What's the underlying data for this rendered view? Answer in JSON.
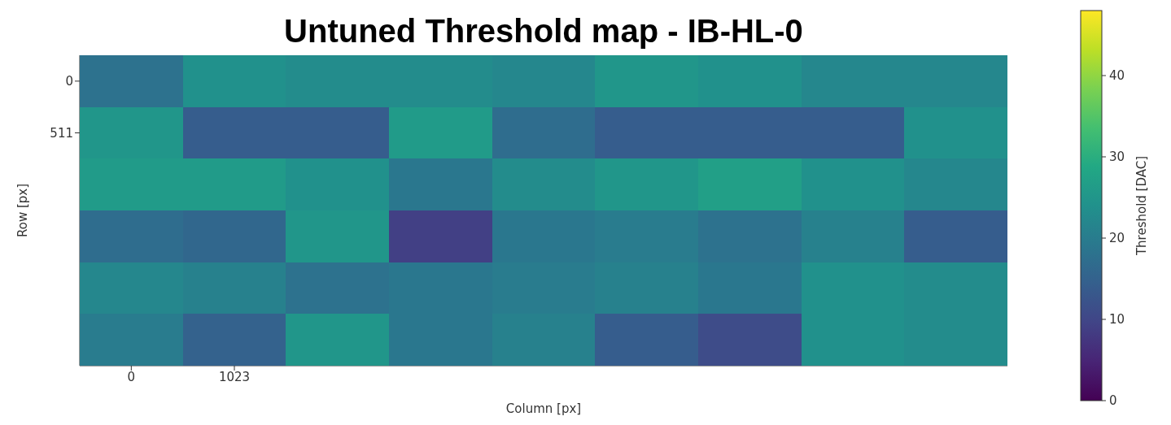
{
  "chart_data": {
    "type": "heatmap",
    "title": "Untuned Threshold map - IB-HL-0",
    "xlabel": "Column [px]",
    "ylabel": "Row [px]",
    "clabel": "Threshold [DAC]",
    "categories": [
      "0",
      "1023",
      null,
      null,
      null,
      null,
      null,
      null,
      null
    ],
    "y_categories": [
      "0",
      "511",
      null,
      null,
      null,
      null
    ],
    "cells": [
      [
        18,
        24,
        23,
        23,
        22,
        25,
        24,
        22,
        22
      ],
      [
        25,
        14,
        14,
        26,
        17,
        14,
        14,
        14,
        24
      ],
      [
        26,
        26,
        24,
        19,
        23,
        25,
        27,
        24,
        22
      ],
      [
        17,
        16,
        25,
        9,
        19,
        20,
        18,
        21,
        14
      ],
      [
        22,
        21,
        18,
        19,
        20,
        21,
        19,
        24,
        23
      ],
      [
        20,
        15,
        25,
        19,
        21,
        14,
        11,
        24,
        23
      ]
    ],
    "clim": [
      0,
      48
    ],
    "cticks": [
      0,
      10,
      20,
      30,
      40
    ]
  }
}
